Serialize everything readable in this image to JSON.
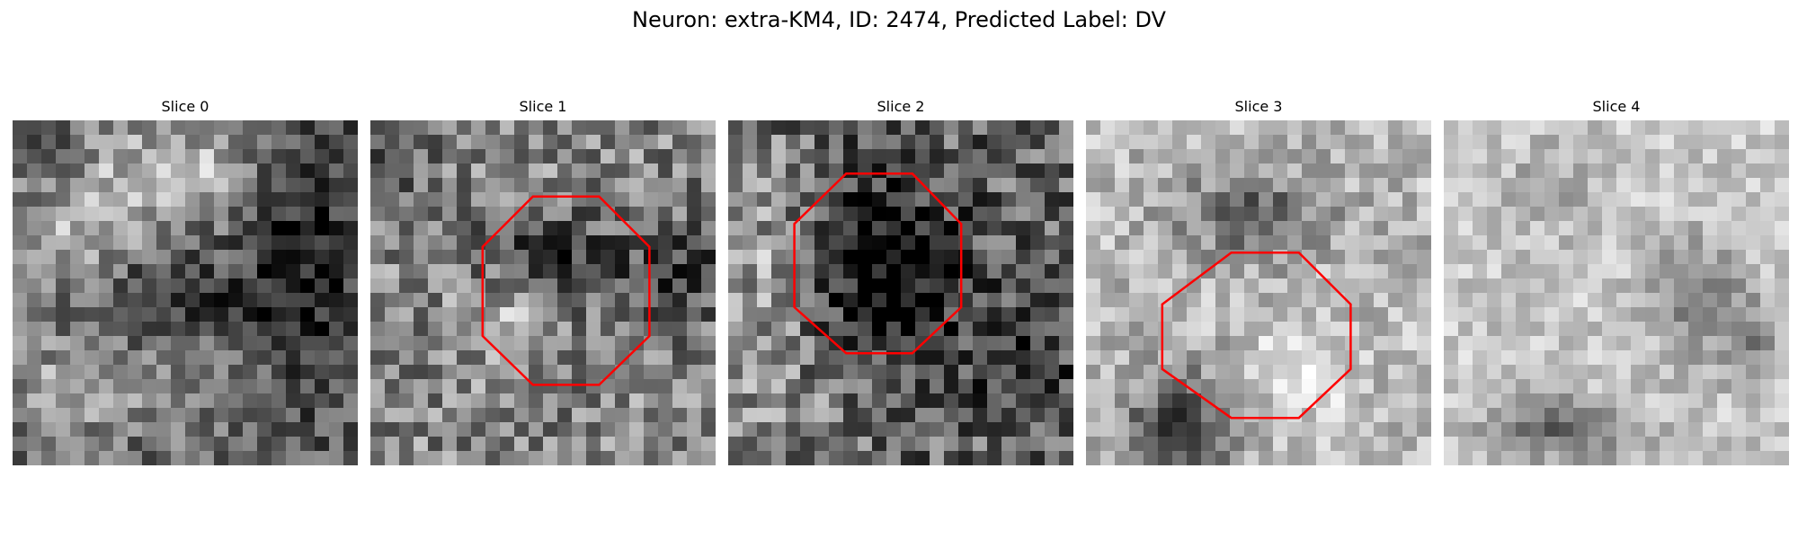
{
  "figure": {
    "title": "Neuron: extra-KM4, ID: 2474, Predicted Label: DV",
    "roi_color": "#ff0000"
  },
  "slices": [
    {
      "label": "Slice 0",
      "has_roi": false
    },
    {
      "label": "Slice 1",
      "has_roi": true
    },
    {
      "label": "Slice 2",
      "has_roi": true
    },
    {
      "label": "Slice 3",
      "has_roi": true
    },
    {
      "label": "Slice 4",
      "has_roi": false
    }
  ]
}
